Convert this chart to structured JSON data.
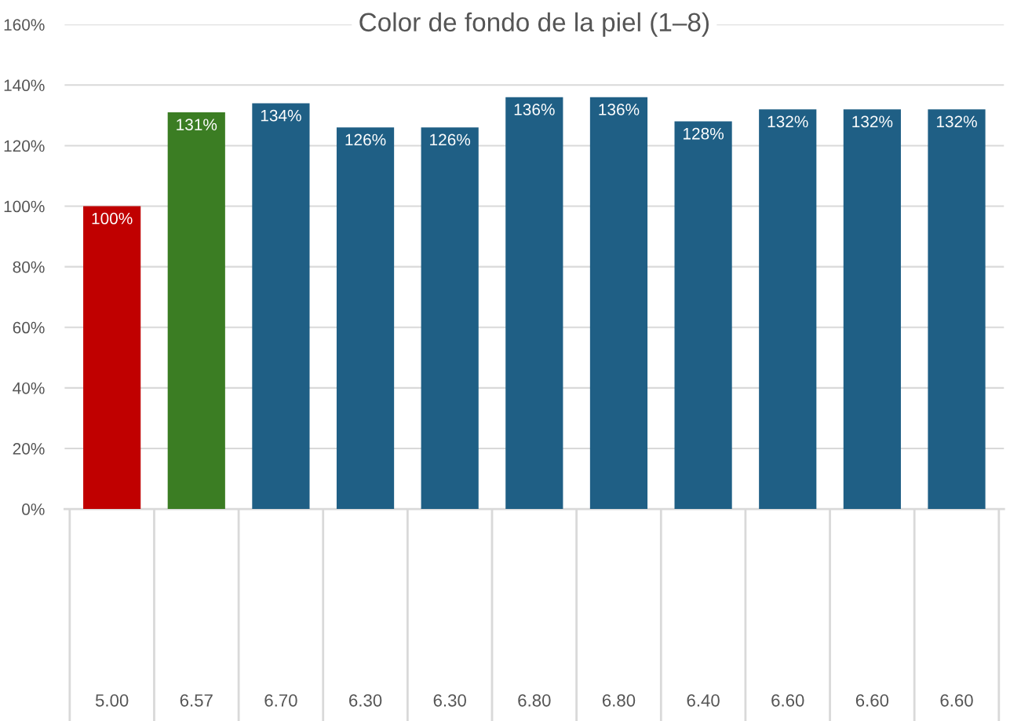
{
  "chart_data": {
    "type": "bar",
    "title": "Color de fondo de la piel (1–8)",
    "categories": [
      null,
      null,
      null,
      null,
      null,
      null,
      null,
      null,
      null,
      null,
      null
    ],
    "values": [
      100,
      131,
      134,
      126,
      126,
      136,
      136,
      128,
      132,
      132,
      132
    ],
    "colors": [
      "#c00000",
      "#3b7d23",
      "#1f5f85",
      "#1f5f85",
      "#1f5f85",
      "#1f5f85",
      "#1f5f85",
      "#1f5f85",
      "#1f5f85",
      "#1f5f85",
      "#1f5f85"
    ],
    "ylim": [
      0,
      160
    ],
    "yticks": [
      {
        "value": 0,
        "label": "0%"
      },
      {
        "value": 20,
        "label": "20%"
      },
      {
        "value": 40,
        "label": "40%"
      },
      {
        "value": 60,
        "label": "60%"
      },
      {
        "value": 80,
        "label": "80%"
      },
      {
        "value": 100,
        "label": "100%"
      },
      {
        "value": 120,
        "label": "120%"
      },
      {
        "value": 140,
        "label": "140%"
      },
      {
        "value": 160,
        "label": "160%"
      }
    ],
    "value_labels": [
      "100%",
      "131%",
      "134%",
      "126%",
      "126%",
      "136%",
      "136%",
      "128%",
      "132%",
      "132%",
      "132%"
    ],
    "grid": "y",
    "annotations": [
      "5.00",
      "6.57",
      "6.70",
      "6.30",
      "6.30",
      "6.80",
      "6.80",
      "6.40",
      "6.60",
      "6.60",
      "6.60"
    ]
  }
}
